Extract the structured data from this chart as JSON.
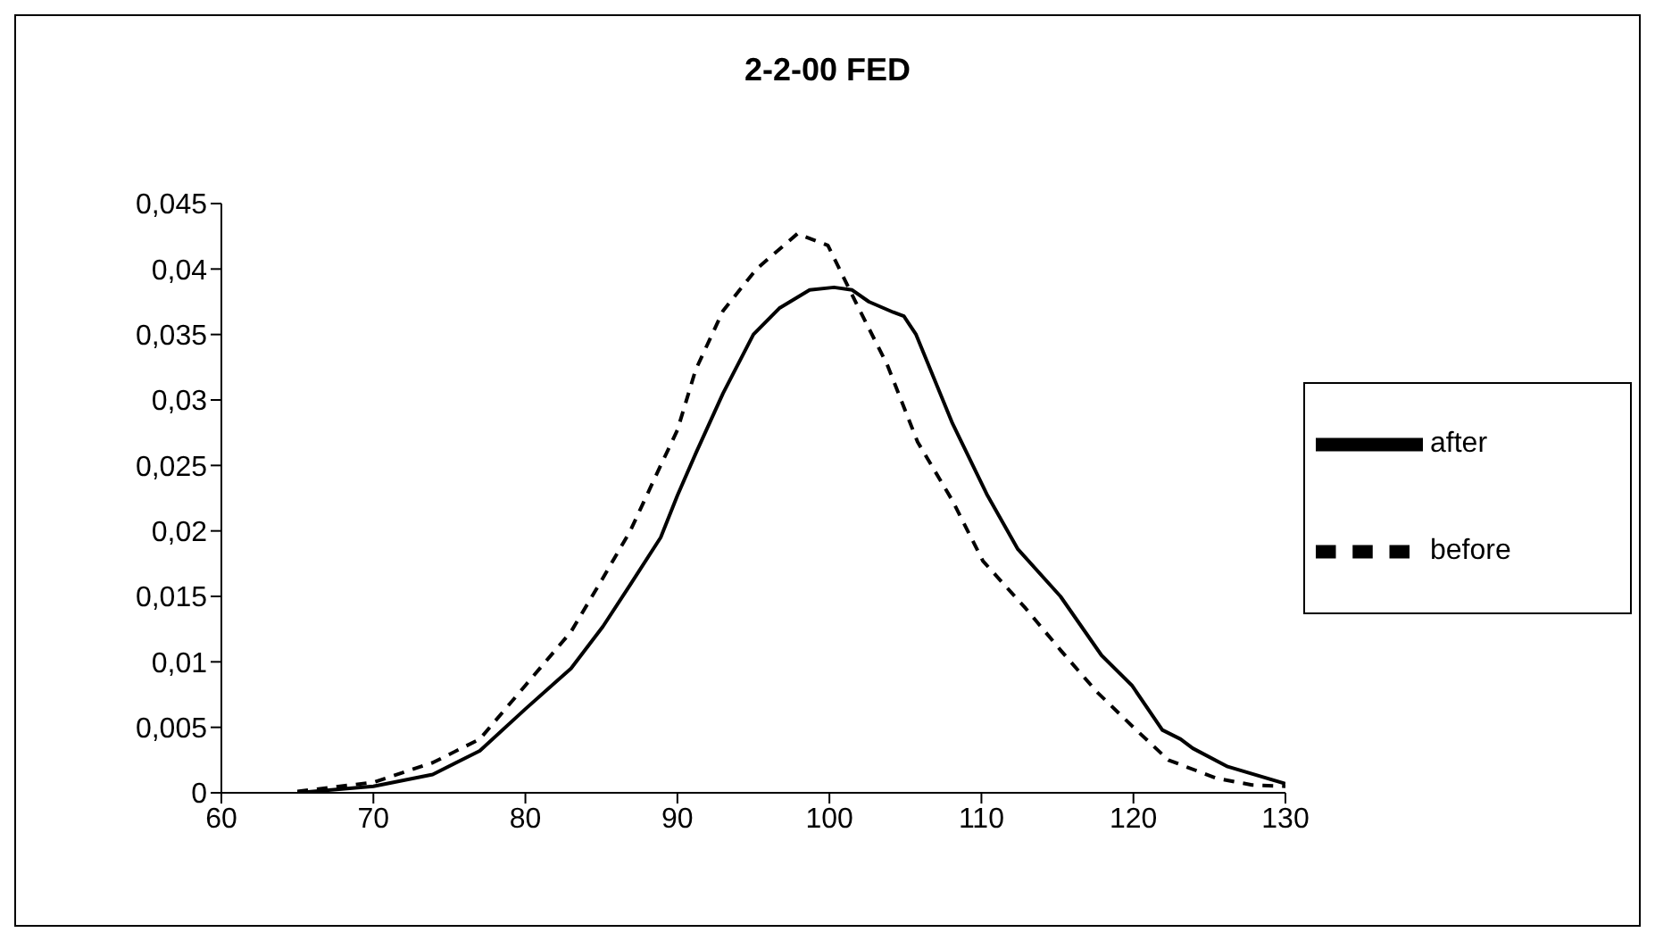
{
  "chart_data": {
    "type": "line",
    "title": "2-2-00 FED",
    "xlim": [
      60,
      130
    ],
    "xticks": [
      60,
      70,
      80,
      90,
      100,
      110,
      120,
      130
    ],
    "ylim": [
      0,
      0.045
    ],
    "yticks": [
      {
        "value": 0,
        "label": "0"
      },
      {
        "value": 0.005,
        "label": "0,005"
      },
      {
        "value": 0.01,
        "label": "0,01"
      },
      {
        "value": 0.015,
        "label": "0,015"
      },
      {
        "value": 0.02,
        "label": "0,02"
      },
      {
        "value": 0.025,
        "label": "0,025"
      },
      {
        "value": 0.03,
        "label": "0,03"
      },
      {
        "value": 0.035,
        "label": "0,035"
      },
      {
        "value": 0.04,
        "label": "0,04"
      },
      {
        "value": 0.045,
        "label": "0,045"
      }
    ],
    "grid": false,
    "legend": "right",
    "marker": "none",
    "series": [
      {
        "name": "before",
        "color": "#000000",
        "line_style": "dashed",
        "x": [
          65,
          70,
          73.9,
          77,
          80,
          83,
          85.1,
          86.9,
          88.9,
          90,
          91.2,
          93,
          95.2,
          97.9,
          99.9,
          101.8,
          103.8,
          105.8,
          108.1,
          110.1,
          112.9,
          115.2,
          117.6,
          120,
          122.3,
          125.5,
          127.8,
          130
        ],
        "values": [
          0.0001,
          0.0008,
          0.0023,
          0.0041,
          0.0082,
          0.0123,
          0.0164,
          0.02,
          0.025,
          0.0277,
          0.0323,
          0.0368,
          0.04,
          0.0427,
          0.0418,
          0.0373,
          0.0327,
          0.0268,
          0.0223,
          0.0177,
          0.0141,
          0.0109,
          0.0077,
          0.005,
          0.0025,
          0.0011,
          0.0006,
          0.0005
        ]
      },
      {
        "name": "after",
        "color": "#000000",
        "line_style": "solid",
        "x": [
          65,
          70,
          73.9,
          77,
          80,
          83,
          85.1,
          86.9,
          88.9,
          90,
          91.2,
          93,
          95,
          96.7,
          98.7,
          100.3,
          101.5,
          102.6,
          104.2,
          104.9,
          105.7,
          108.1,
          110.4,
          112.4,
          115.2,
          117.9,
          119.9,
          121.9,
          123.1,
          123.9,
          126.2,
          130
        ],
        "values": [
          0,
          0.0005,
          0.0014,
          0.0032,
          0.0064,
          0.0095,
          0.0127,
          0.0159,
          0.0195,
          0.0227,
          0.0259,
          0.0305,
          0.035,
          0.037,
          0.0384,
          0.0386,
          0.0384,
          0.0375,
          0.0367,
          0.0364,
          0.035,
          0.0282,
          0.0227,
          0.0186,
          0.015,
          0.0105,
          0.0082,
          0.0048,
          0.0041,
          0.0034,
          0.002,
          0.0007
        ]
      }
    ]
  }
}
